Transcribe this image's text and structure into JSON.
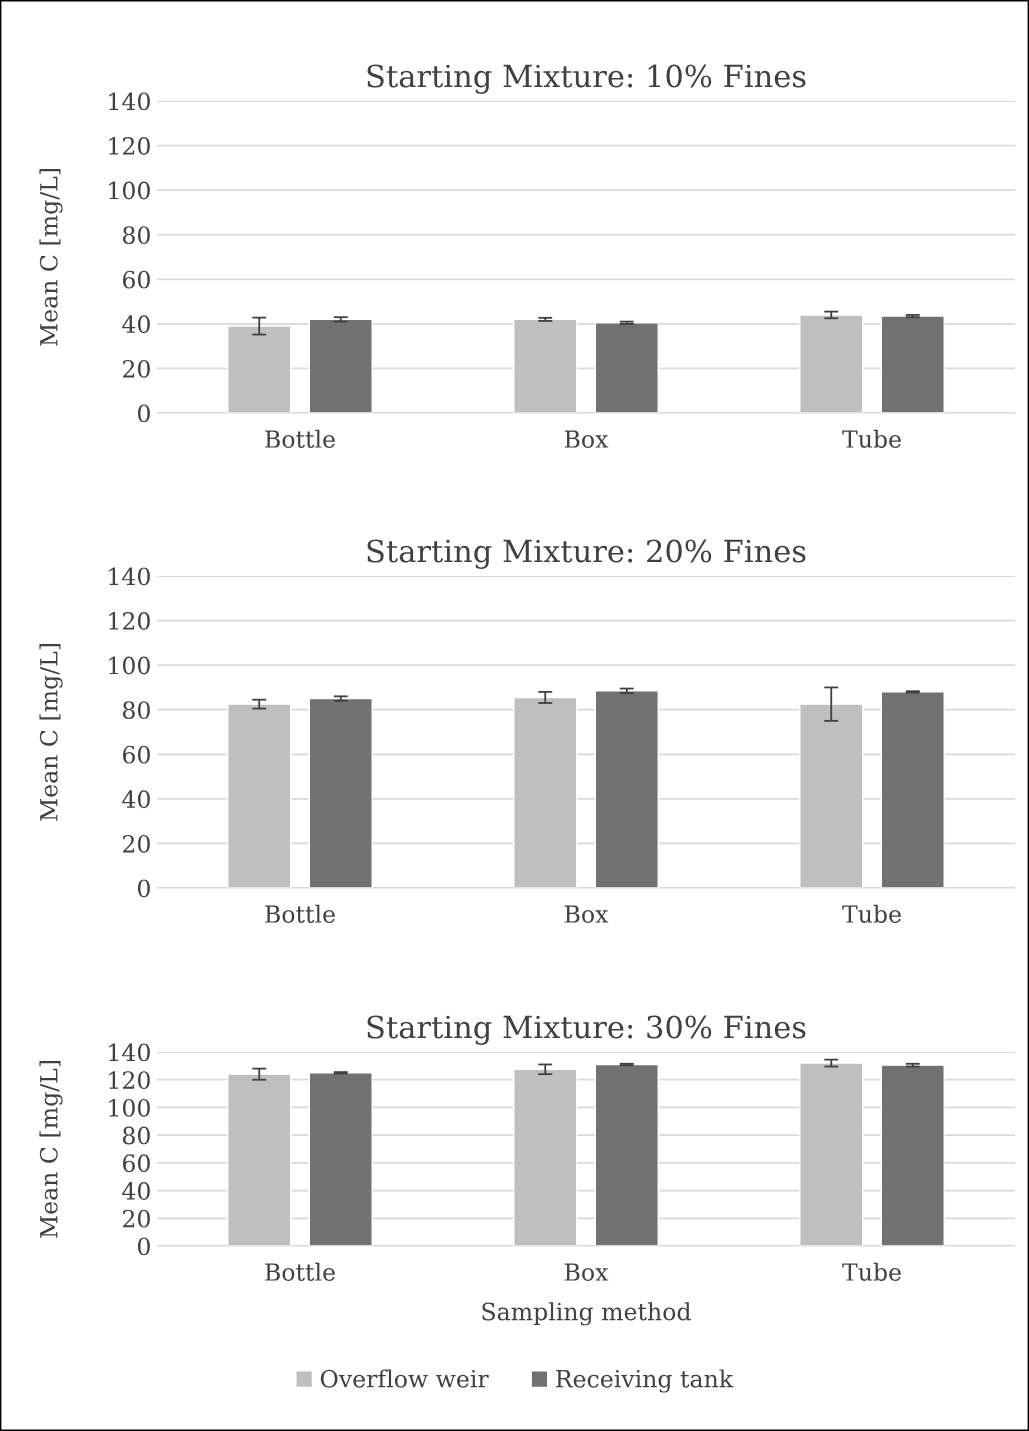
{
  "chart_data": [
    {
      "type": "bar",
      "title": "Starting Mixture: 10% Fines",
      "ylabel": "Mean C [mg/L]",
      "categories": [
        "Bottle",
        "Box",
        "Tube"
      ],
      "ylim": [
        0,
        140
      ],
      "yticks": [
        0,
        20,
        40,
        60,
        80,
        100,
        120,
        140
      ],
      "grid": "y",
      "series": [
        {
          "color": "#bfbfbf",
          "values": [
            39,
            42,
            44
          ],
          "errors": [
            3.8,
            0.7,
            1.5
          ]
        },
        {
          "color": "#717171",
          "values": [
            42,
            40.5,
            43.5
          ],
          "errors": [
            1,
            0.5,
            0.5
          ]
        }
      ]
    },
    {
      "type": "bar",
      "title": "Starting Mixture: 20% Fines",
      "ylabel": "Mean C [mg/L]",
      "categories": [
        "Bottle",
        "Box",
        "Tube"
      ],
      "ylim": [
        0,
        140
      ],
      "yticks": [
        0,
        20,
        40,
        60,
        80,
        100,
        120,
        140
      ],
      "grid": "y",
      "series": [
        {
          "color": "#bfbfbf",
          "values": [
            82.5,
            85.5,
            82.5
          ],
          "errors": [
            2,
            2.5,
            7.5
          ]
        },
        {
          "color": "#717171",
          "values": [
            85,
            88.5,
            88
          ],
          "errors": [
            1,
            1,
            0.3
          ]
        }
      ]
    },
    {
      "type": "bar",
      "title": "Starting Mixture: 30% Fines",
      "ylabel": "Mean C [mg/L]",
      "xlabel": "Sampling method",
      "categories": [
        "Bottle",
        "Box",
        "Tube"
      ],
      "ylim": [
        0,
        140
      ],
      "yticks": [
        0,
        20,
        40,
        60,
        80,
        100,
        120,
        140
      ],
      "grid": "y",
      "legend": "bottom",
      "series": [
        {
          "name": "Overflow weir",
          "color": "#bfbfbf",
          "values": [
            124,
            127.5,
            132
          ],
          "errors": [
            4,
            3.5,
            2.5
          ]
        },
        {
          "name": "Receiving tank",
          "color": "#717171",
          "values": [
            125,
            131,
            130.5
          ],
          "errors": [
            0.5,
            0.5,
            1
          ]
        }
      ]
    }
  ]
}
